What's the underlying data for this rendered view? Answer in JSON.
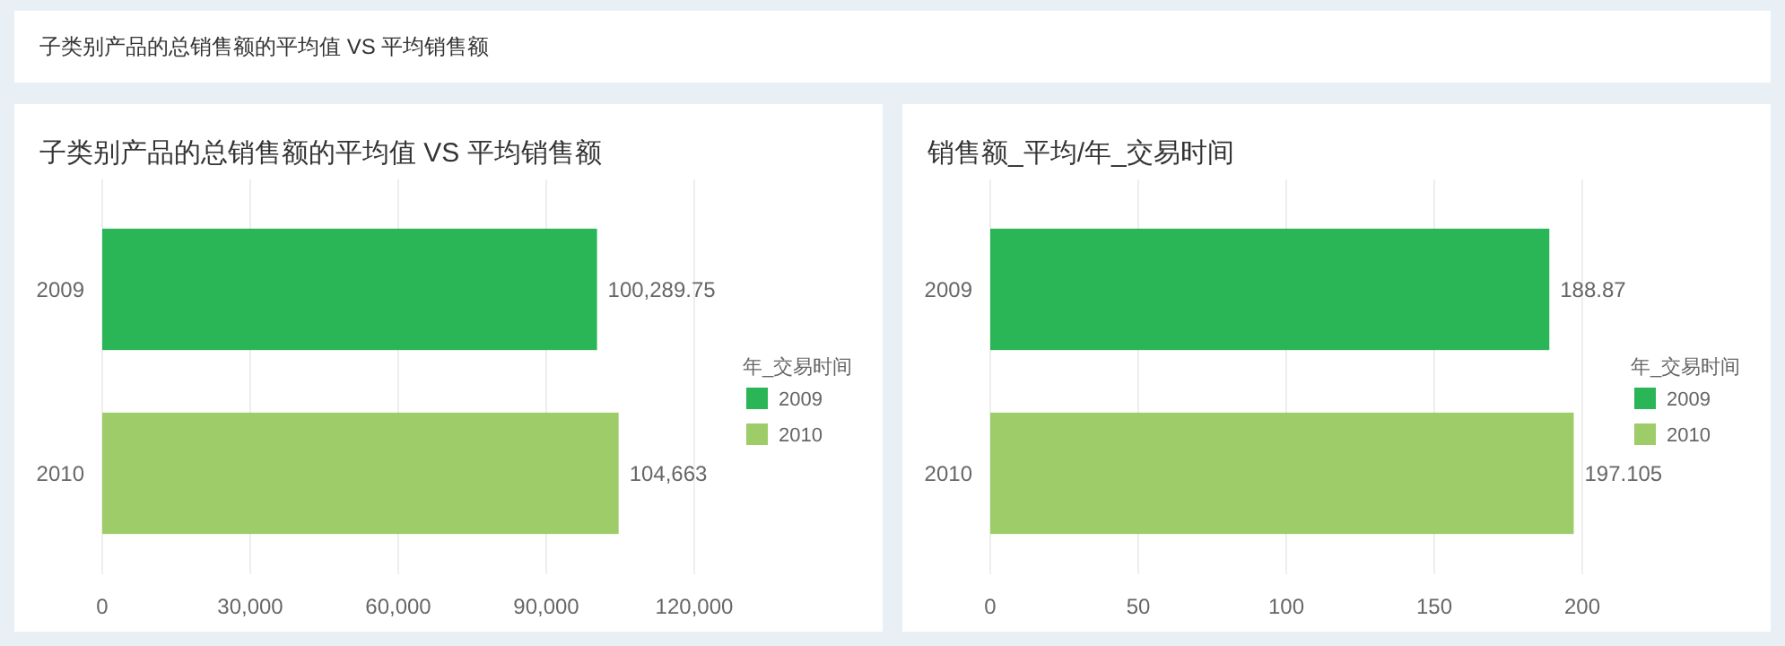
{
  "chart_data": [
    {
      "type": "other",
      "title": "子类别产品的总销售额的平均值  VS 平均销售额"
    },
    {
      "type": "bar",
      "orientation": "horizontal",
      "stacked": true,
      "title": "子类别产品的总销售额的平均值  VS 平均销售额",
      "categories": [
        "2009",
        "2010"
      ],
      "series": [
        {
          "name": "2009",
          "color": "#2ab656",
          "values": [
            100289.75,
            null
          ],
          "value_labels": [
            "100,289.75",
            null
          ]
        },
        {
          "name": "2010",
          "color": "#9ecc68",
          "values": [
            null,
            104663
          ],
          "value_labels": [
            null,
            "104,663"
          ]
        }
      ],
      "xlim": [
        0,
        120000
      ],
      "xticks": [
        0,
        {
          "value": 30000,
          "label": "30,000"
        },
        {
          "value": 60000,
          "label": "60,000"
        },
        {
          "value": 90000,
          "label": "90,000"
        },
        {
          "value": 120000,
          "label": "120,000"
        }
      ],
      "grid": "x",
      "legend": "right",
      "legend_title": "年_交易时间"
    },
    {
      "type": "bar",
      "orientation": "horizontal",
      "stacked": true,
      "title": "销售额_平均/年_交易时间",
      "categories": [
        "2009",
        "2010"
      ],
      "series": [
        {
          "name": "2009",
          "color": "#2ab656",
          "values": [
            188.87,
            null
          ],
          "value_labels": [
            "188.87",
            null
          ]
        },
        {
          "name": "2010",
          "color": "#9ecc68",
          "values": [
            null,
            197.105
          ],
          "value_labels": [
            null,
            "197.105"
          ]
        }
      ],
      "xlim": [
        0,
        200
      ],
      "xticks": [
        0,
        50,
        100,
        150,
        200
      ],
      "grid": "x",
      "legend": "right",
      "legend_title": "年_交易时间"
    }
  ]
}
